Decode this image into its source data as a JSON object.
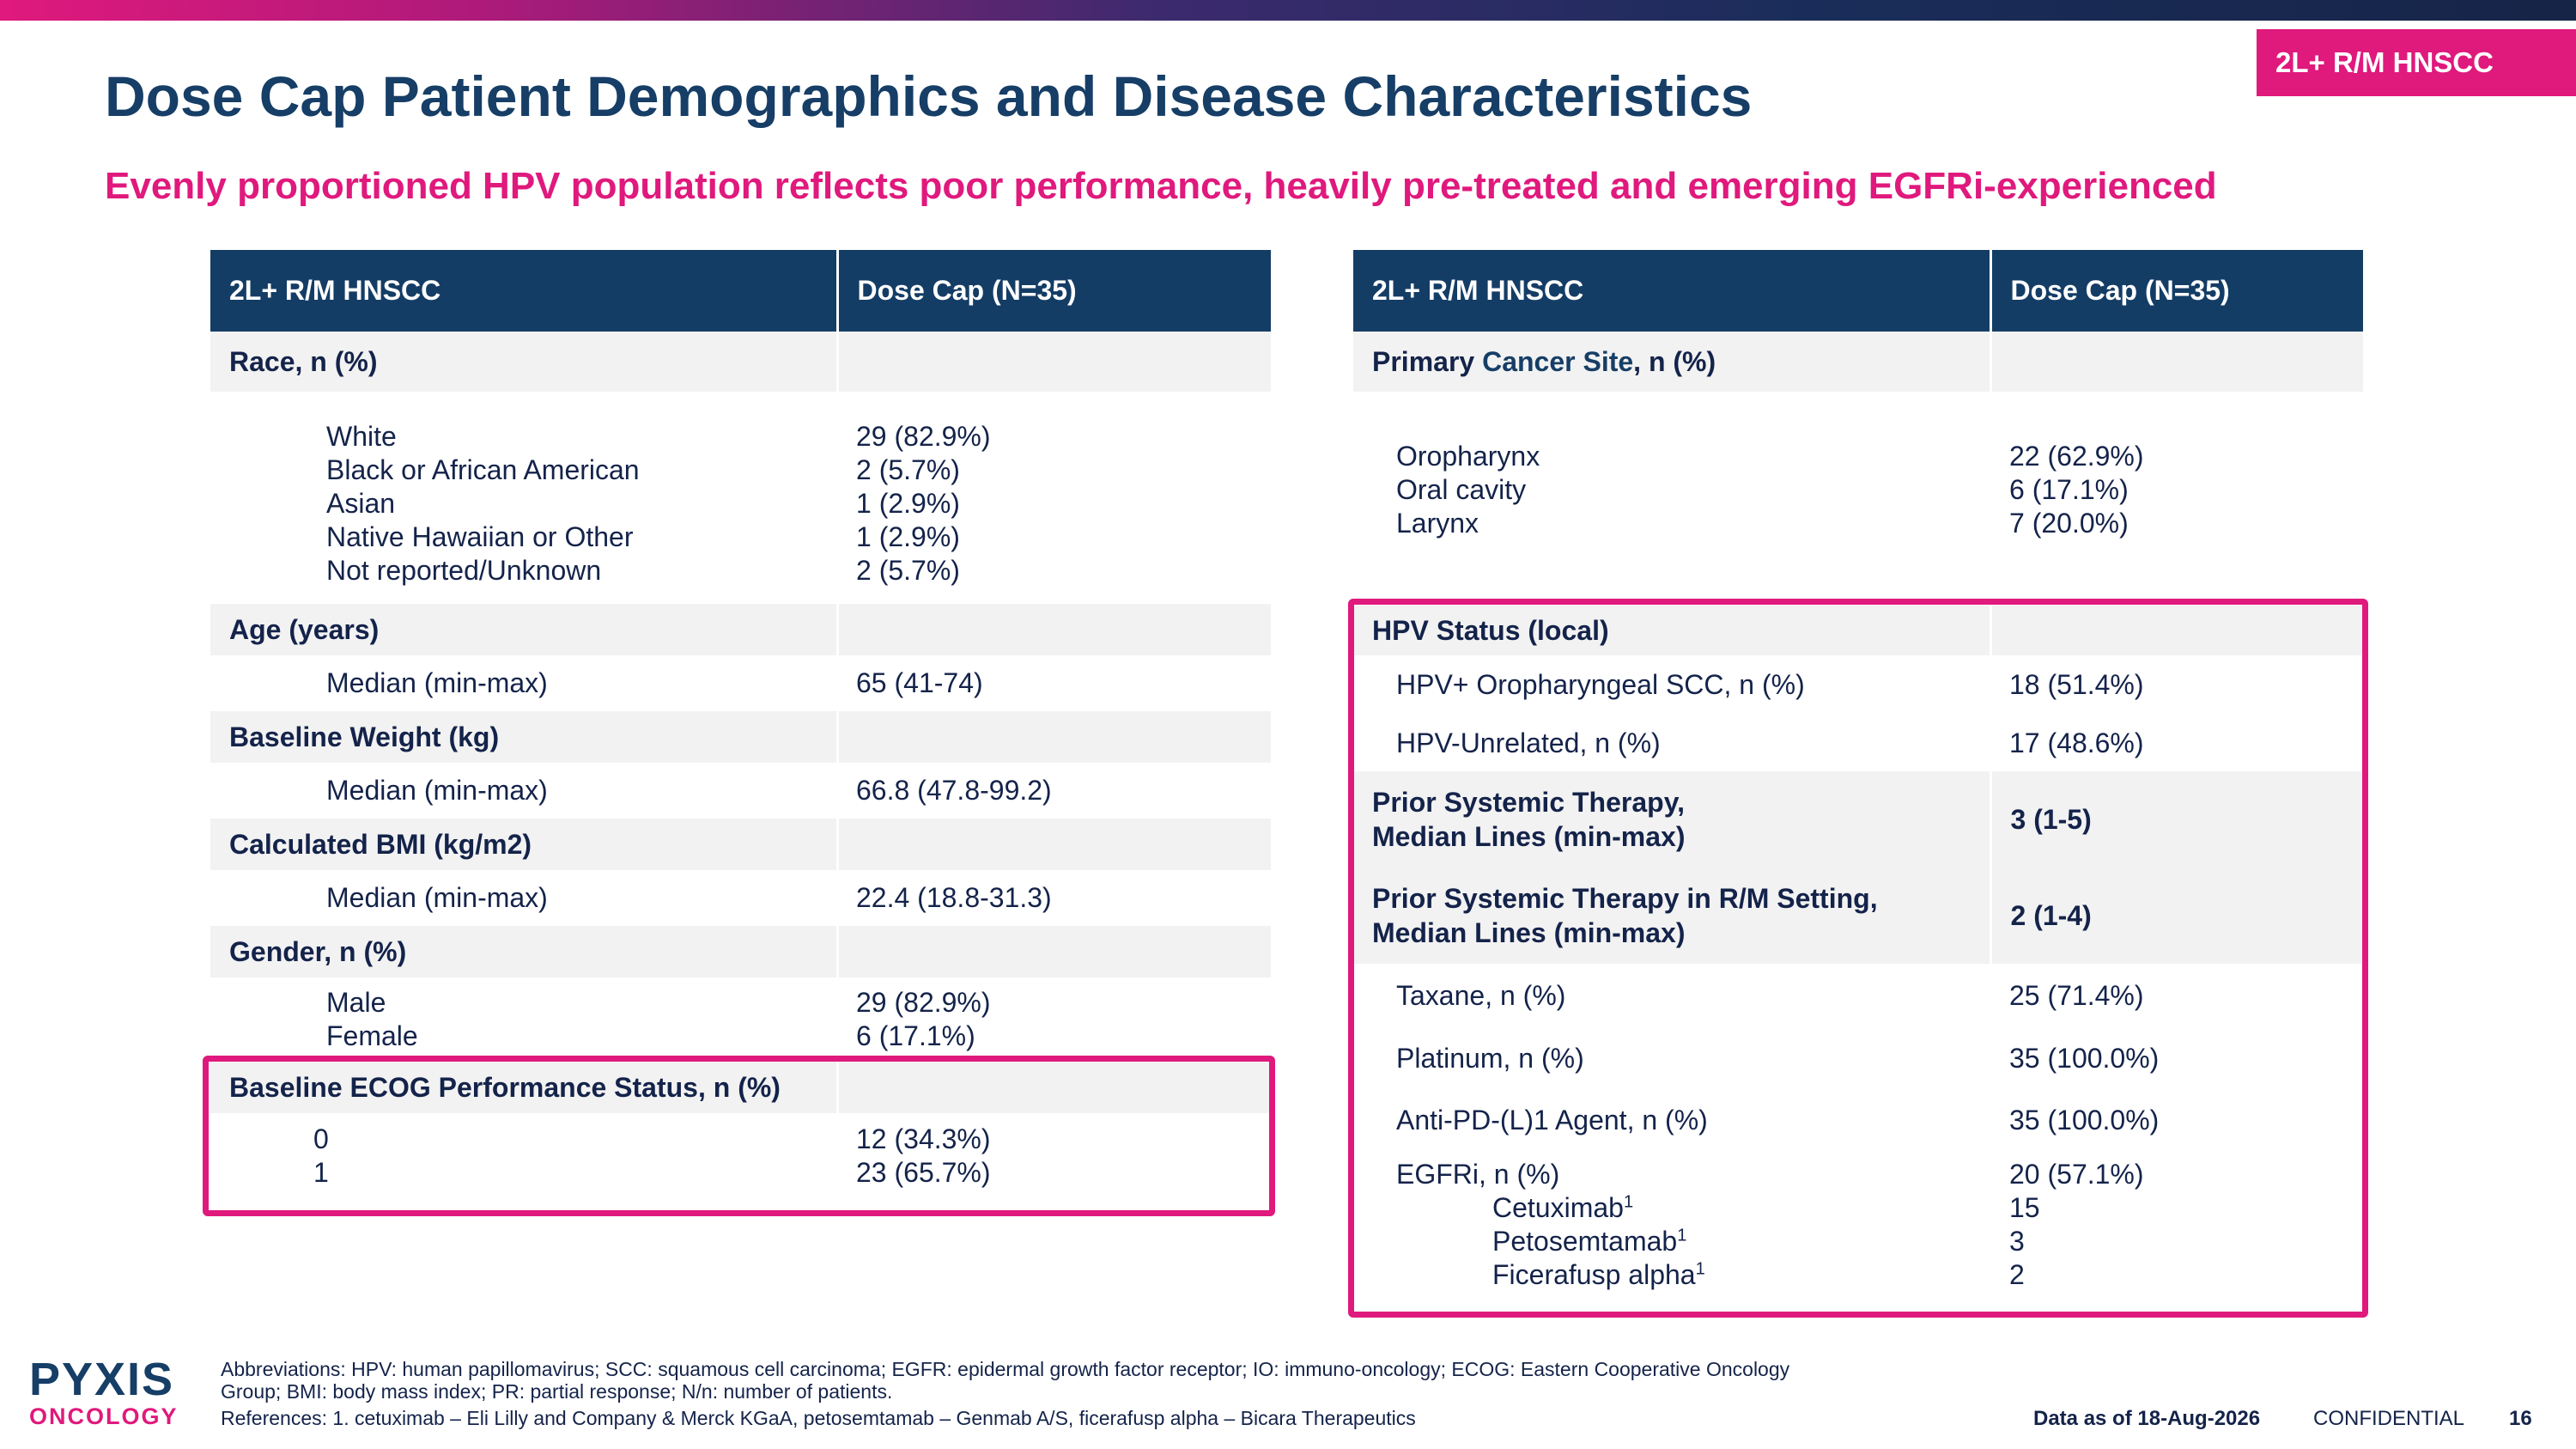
{
  "header": {
    "tag": "2L+ R/M HNSCC",
    "title": "Dose Cap Patient Demographics and Disease Characteristics",
    "subtitle": "Evenly proportioned HPV population reflects poor performance, heavily pre-treated and emerging EGFRi-experienced"
  },
  "left_table": {
    "headers": [
      "2L+ R/M HNSCC",
      "Dose Cap (N=35)"
    ],
    "race": {
      "label": "Race, n (%)",
      "items": [
        "White",
        "Black or African American",
        "Asian",
        "Native Hawaiian or Other",
        "Not reported/Unknown"
      ],
      "values": [
        "29 (82.9%)",
        "2 (5.7%)",
        "1 (2.9%)",
        "1 (2.9%)",
        "2 (5.7%)"
      ]
    },
    "age": {
      "label": "Age (years)",
      "item": "Median (min-max)",
      "value": "65 (41-74)"
    },
    "weight": {
      "label": "Baseline Weight (kg)",
      "item": "Median (min-max)",
      "value": "66.8 (47.8-99.2)"
    },
    "bmi": {
      "label": "Calculated BMI (kg/m2)",
      "item": "Median (min-max)",
      "value": "22.4 (18.8-31.3)"
    },
    "gender": {
      "label": "Gender, n (%)",
      "items": [
        "Male",
        "Female"
      ],
      "values": [
        "29 (82.9%)",
        "6 (17.1%)"
      ]
    },
    "ecog": {
      "label": "Baseline ECOG Performance Status, n (%)",
      "items": [
        "0",
        "1"
      ],
      "values": [
        "12 (34.3%)",
        "23 (65.7%)"
      ]
    }
  },
  "right_table": {
    "headers": [
      "2L+ R/M HNSCC",
      "Dose Cap (N=35)"
    ],
    "primary_site": {
      "label_prefix": "Primary ",
      "label_highlight": "Cancer Site",
      "label_suffix": ", n (%)",
      "items": [
        "Oropharynx",
        "Oral cavity",
        "Larynx"
      ],
      "values": [
        "22 (62.9%)",
        "6 (17.1%)",
        "7 (20.0%)"
      ]
    },
    "hpv": {
      "label": "HPV Status (local)",
      "rows": [
        {
          "label": "HPV+ Oropharyngeal SCC, n (%)",
          "value": "18 (51.4%)"
        },
        {
          "label": "HPV-Unrelated, n (%)",
          "value": "17 (48.6%)"
        }
      ]
    },
    "prior_systemic": {
      "label_line1": "Prior Systemic Therapy,",
      "label_line2": "Median Lines (min-max)",
      "value": "3 (1-5)"
    },
    "prior_rm": {
      "label_line1": "Prior Systemic Therapy in R/M Setting,",
      "label_line2": "Median Lines (min-max)",
      "value": "2 (1-4)"
    },
    "therapies": [
      {
        "label": "Taxane, n (%)",
        "value": "25 (71.4%)"
      },
      {
        "label": "Platinum, n (%)",
        "value": "35 (100.0%)"
      },
      {
        "label": "Anti-PD-(L)1 Agent, n (%)",
        "value": "35 (100.0%)"
      }
    ],
    "egfri": {
      "label": "EGFRi, n (%)",
      "value": "20 (57.1%)",
      "agents": [
        {
          "name": "Cetuximab",
          "sup": "1",
          "value": "15"
        },
        {
          "name": "Petosemtamab",
          "sup": "1",
          "value": "3"
        },
        {
          "name": "Ficerafusp alpha",
          "sup": "1",
          "value": "2"
        }
      ]
    }
  },
  "footer": {
    "abbrev_line1": "Abbreviations: HPV: human papillomavirus; SCC: squamous cell carcinoma; EGFR: epidermal growth factor receptor; IO: immuno-oncology; ECOG: Eastern Cooperative Oncology",
    "abbrev_line2": "Group; BMI: body mass index; PR: partial response; N/n: number of patients.",
    "references": "References: 1. cetuximab – Eli Lilly and Company & Merck KGaA, petosemtamab – Genmab A/S, ficerafusp alpha – Bicara Therapeutics",
    "data_as_of": "Data as of 18-Aug-2026",
    "confidential": "CONFIDENTIAL",
    "page_number": "16",
    "logo_top": "PYXIS",
    "logo_bottom": "ONCOLOGY"
  }
}
